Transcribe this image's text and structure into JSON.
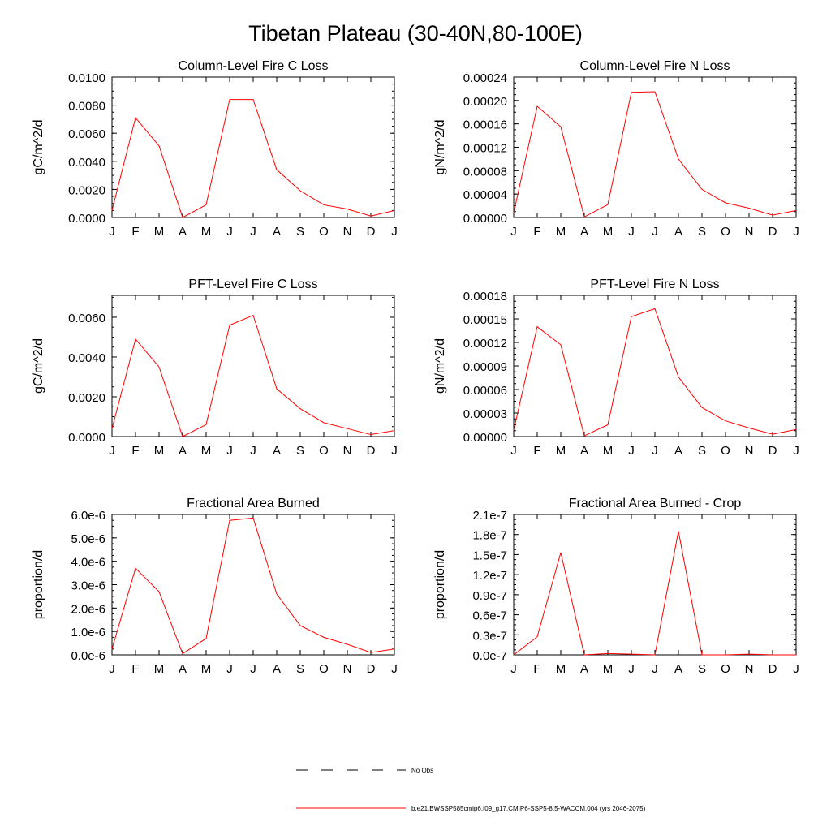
{
  "main_title": "Tibetan Plateau (30-40N,80-100E)",
  "legend": {
    "items": [
      {
        "label": "No Obs",
        "style": "dashed",
        "color": "#000000"
      },
      {
        "label": "b.e21.BWSSP585cmip6.f09_g17.CMIP6-SSP5-8.5-WACCM.004 (yrs 2046-2075)",
        "style": "solid",
        "color": "#ff0000"
      }
    ]
  },
  "colors": {
    "series": "#ff0000",
    "axis": "#000000"
  },
  "chart_data": [
    {
      "type": "line",
      "title": "Column-Level Fire C Loss",
      "ylabel": "gC/m^2/d",
      "xlabel": "",
      "x": [
        "J",
        "F",
        "M",
        "A",
        "M",
        "J",
        "J",
        "A",
        "S",
        "O",
        "N",
        "D",
        "J"
      ],
      "ylim": [
        0,
        0.01
      ],
      "yticks": [
        "0.0000",
        "0.0020",
        "0.0040",
        "0.0060",
        "0.0080",
        "0.0100"
      ],
      "grid": false,
      "series": [
        {
          "values": [
            0.0005,
            0.0071,
            0.0051,
            0.0,
            0.0009,
            0.0084,
            0.0084,
            0.0034,
            0.0019,
            0.0009,
            0.0006,
            0.0001,
            0.0005
          ]
        }
      ]
    },
    {
      "type": "line",
      "title": "Column-Level Fire N Loss",
      "ylabel": "gN/m^2/d",
      "xlabel": "",
      "x": [
        "J",
        "F",
        "M",
        "A",
        "M",
        "J",
        "J",
        "A",
        "S",
        "O",
        "N",
        "D",
        "J"
      ],
      "ylim": [
        0,
        0.00024
      ],
      "yticks": [
        "0.00000",
        "0.00004",
        "0.00008",
        "0.00012",
        "0.00016",
        "0.00020",
        "0.00024"
      ],
      "grid": false,
      "series": [
        {
          "values": [
            8e-06,
            0.00019,
            0.000155,
            1e-06,
            2.2e-05,
            0.000214,
            0.000215,
            0.0001,
            4.8e-05,
            2.5e-05,
            1.6e-05,
            4e-06,
            1.2e-05
          ]
        }
      ]
    },
    {
      "type": "line",
      "title": "PFT-Level Fire C Loss",
      "ylabel": "gC/m^2/d",
      "xlabel": "",
      "x": [
        "J",
        "F",
        "M",
        "A",
        "M",
        "J",
        "J",
        "A",
        "S",
        "O",
        "N",
        "D",
        "J"
      ],
      "ylim": [
        0,
        0.0071
      ],
      "yticks": [
        "0.0000",
        "0.0020",
        "0.0040",
        "0.0060"
      ],
      "grid": false,
      "series": [
        {
          "values": [
            0.0004,
            0.0049,
            0.0035,
            0.0,
            0.0006,
            0.0056,
            0.0061,
            0.0024,
            0.0014,
            0.0007,
            0.0004,
            0.0001,
            0.0003
          ]
        }
      ]
    },
    {
      "type": "line",
      "title": "PFT-Level Fire N Loss",
      "ylabel": "gN/m^2/d",
      "xlabel": "",
      "x": [
        "J",
        "F",
        "M",
        "A",
        "M",
        "J",
        "J",
        "A",
        "S",
        "O",
        "N",
        "D",
        "J"
      ],
      "ylim": [
        0,
        0.00018
      ],
      "yticks": [
        "0.00000",
        "0.00003",
        "0.00006",
        "0.00009",
        "0.00012",
        "0.00015",
        "0.00018"
      ],
      "grid": false,
      "series": [
        {
          "values": [
            8e-06,
            0.00014,
            0.000117,
            1e-06,
            1.5e-05,
            0.000153,
            0.000163,
            7.6e-05,
            3.7e-05,
            2e-05,
            1.1e-05,
            3e-06,
            9e-06
          ]
        }
      ]
    },
    {
      "type": "line",
      "title": "Fractional Area Burned",
      "ylabel": "proportion/d",
      "xlabel": "",
      "x": [
        "J",
        "F",
        "M",
        "A",
        "M",
        "J",
        "J",
        "A",
        "S",
        "O",
        "N",
        "D",
        "J"
      ],
      "ylim": [
        0,
        6e-06
      ],
      "yticks": [
        "0.0e-6",
        "1.0e-6",
        "2.0e-6",
        "3.0e-6",
        "4.0e-6",
        "5.0e-6",
        "6.0e-6"
      ],
      "grid": false,
      "series": [
        {
          "values": [
            2.5e-07,
            3.7e-06,
            2.7e-06,
            5e-08,
            7e-07,
            5.75e-06,
            5.85e-06,
            2.6e-06,
            1.25e-06,
            7.5e-07,
            4.5e-07,
            1e-07,
            2.5e-07
          ]
        }
      ]
    },
    {
      "type": "line",
      "title": "Fractional Area Burned - Crop",
      "ylabel": "proportion/d",
      "xlabel": "",
      "x": [
        "J",
        "F",
        "M",
        "A",
        "M",
        "J",
        "J",
        "A",
        "S",
        "O",
        "N",
        "D",
        "J"
      ],
      "ylim": [
        0,
        2.1e-07
      ],
      "yticks": [
        "0.0e-7",
        "0.3e-7",
        "0.6e-7",
        "0.9e-7",
        "1.2e-7",
        "1.5e-7",
        "1.8e-7",
        "2.1e-7"
      ],
      "grid": false,
      "series": [
        {
          "values": [
            0,
            2.7e-08,
            1.53e-07,
            0,
            2e-09,
            1e-09,
            0,
            1.85e-07,
            0,
            0,
            1e-09,
            0,
            0
          ]
        }
      ]
    }
  ]
}
